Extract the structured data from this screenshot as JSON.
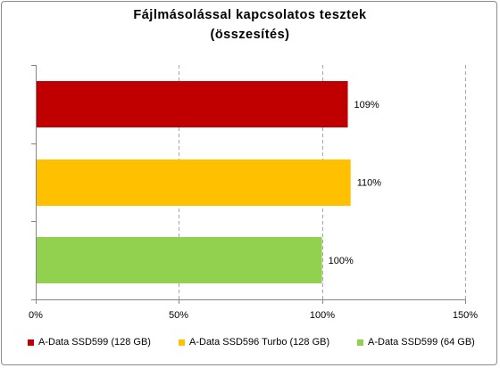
{
  "chart_data": {
    "type": "bar",
    "orientation": "horizontal",
    "title_lines": [
      "Fájlmásolással kapcsolatos tesztek",
      "(összesítés)"
    ],
    "categories": [
      "A-Data SSD599 (128 GB)",
      "A-Data SSD596 Turbo (128 GB)",
      "A-Data SSD599 (64 GB)"
    ],
    "values": [
      109,
      110,
      100
    ],
    "data_labels": [
      "109%",
      "110%",
      "100%"
    ],
    "colors": [
      "#c00000",
      "#ffc000",
      "#92d050"
    ],
    "xlim": [
      0,
      150
    ],
    "xticks": [
      0,
      50,
      100,
      150
    ],
    "xtick_labels": [
      "0%",
      "50%",
      "100%",
      "150%"
    ],
    "grid": "vertical dashed",
    "legend": {
      "position": "bottom",
      "items": [
        "A-Data SSD599 (128 GB)",
        "A-Data SSD596 Turbo (128 GB)",
        "A-Data SSD599 (64 GB)"
      ]
    }
  }
}
